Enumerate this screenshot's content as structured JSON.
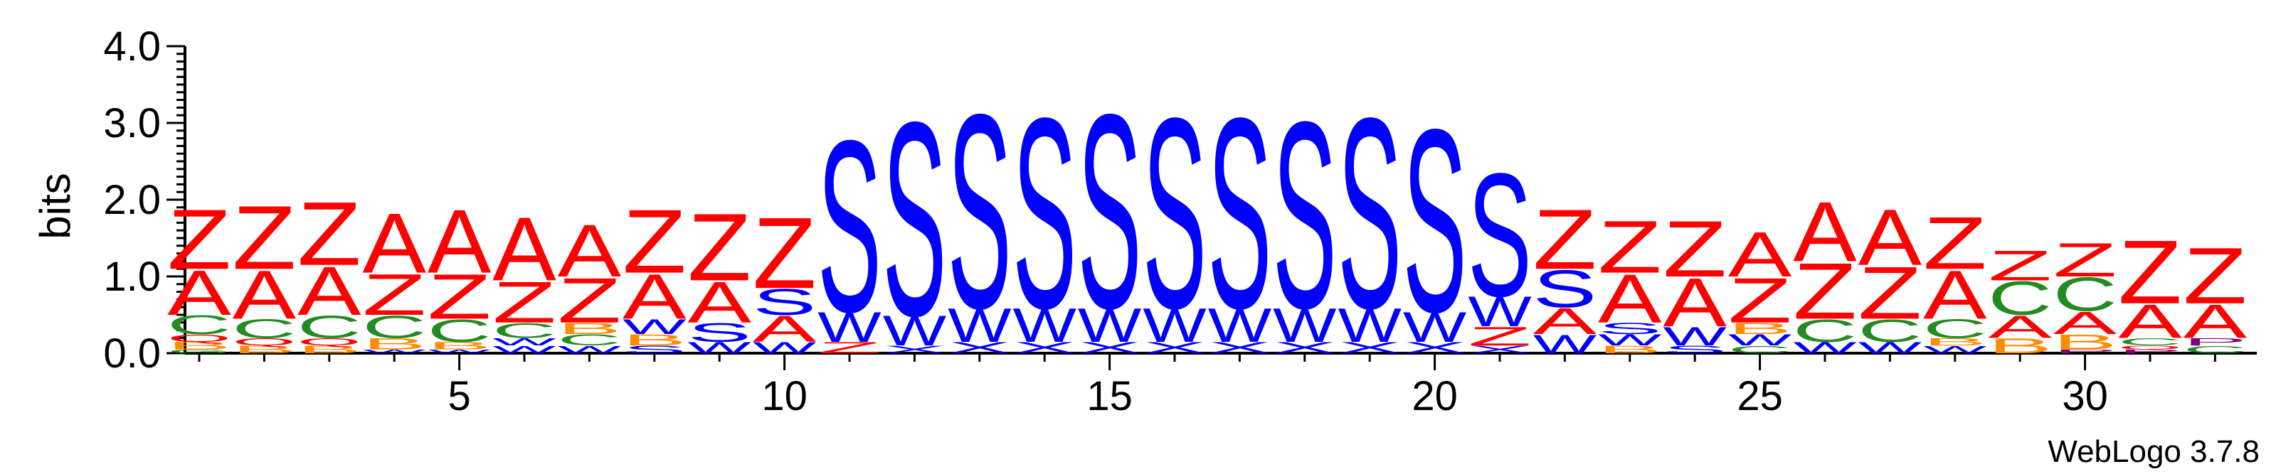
{
  "chart_data": {
    "type": "sequence-logo",
    "ylabel": "bits",
    "ylim": [
      0,
      4.0
    ],
    "y_ticks": [
      "0.0",
      "1.0",
      "2.0",
      "3.0",
      "4.0"
    ],
    "x_ticks": [
      5,
      10,
      15,
      20,
      25,
      30
    ],
    "x_range": [
      1,
      32
    ],
    "credit": "WebLogo 3.7.8",
    "colors": {
      "Z": "#ff0000",
      "A": "#ff0000",
      "S": "#0000ff",
      "W": "#0000ff",
      "X": "#0000ff",
      "C": "#228b22",
      "B": "#ff8c00",
      "P": "#800080",
      "Q": "#ff0000",
      "G": "#228b22",
      "O": "#ff0000"
    },
    "positions": [
      {
        "pos": 1,
        "stack": [
          [
            "G",
            0.05
          ],
          [
            "B",
            0.1
          ],
          [
            "Q",
            0.1
          ],
          [
            "C",
            0.25
          ],
          [
            "A",
            0.6
          ],
          [
            "Z",
            0.8
          ]
        ]
      },
      {
        "pos": 2,
        "stack": [
          [
            "B",
            0.1
          ],
          [
            "Q",
            0.1
          ],
          [
            "C",
            0.25
          ],
          [
            "A",
            0.65
          ],
          [
            "Z",
            0.85
          ]
        ]
      },
      {
        "pos": 3,
        "stack": [
          [
            "B",
            0.1
          ],
          [
            "Q",
            0.1
          ],
          [
            "C",
            0.3
          ],
          [
            "A",
            0.65
          ],
          [
            "Z",
            0.85
          ]
        ]
      },
      {
        "pos": 4,
        "stack": [
          [
            "W",
            0.05
          ],
          [
            "B",
            0.15
          ],
          [
            "C",
            0.3
          ],
          [
            "Z",
            0.55
          ],
          [
            "A",
            0.8
          ]
        ]
      },
      {
        "pos": 5,
        "stack": [
          [
            "W",
            0.05
          ],
          [
            "B",
            0.1
          ],
          [
            "C",
            0.3
          ],
          [
            "Z",
            0.6
          ],
          [
            "A",
            0.85
          ]
        ]
      },
      {
        "pos": 6,
        "stack": [
          [
            "W",
            0.1
          ],
          [
            "W",
            0.1
          ],
          [
            "C",
            0.2
          ],
          [
            "Z",
            0.55
          ],
          [
            "A",
            0.85
          ]
        ]
      },
      {
        "pos": 7,
        "stack": [
          [
            "W",
            0.1
          ],
          [
            "C",
            0.15
          ],
          [
            "B",
            0.15
          ],
          [
            "Z",
            0.6
          ],
          [
            "A",
            0.7
          ]
        ]
      },
      {
        "pos": 8,
        "stack": [
          [
            "S",
            0.1
          ],
          [
            "B",
            0.15
          ],
          [
            "W",
            0.2
          ],
          [
            "A",
            0.6
          ],
          [
            "Z",
            0.85
          ]
        ]
      },
      {
        "pos": 9,
        "stack": [
          [
            "W",
            0.15
          ],
          [
            "S",
            0.25
          ],
          [
            "A",
            0.55
          ],
          [
            "Z",
            0.9
          ]
        ]
      },
      {
        "pos": 10,
        "stack": [
          [
            "W",
            0.15
          ],
          [
            "A",
            0.35
          ],
          [
            "S",
            0.35
          ],
          [
            "Z",
            0.95
          ]
        ]
      },
      {
        "pos": 11,
        "stack": [
          [
            "Z",
            0.15
          ],
          [
            "W",
            0.4
          ],
          [
            "S",
            2.3
          ]
        ]
      },
      {
        "pos": 12,
        "stack": [
          [
            "X",
            0.1
          ],
          [
            "W",
            0.4
          ],
          [
            "S",
            2.6
          ]
        ]
      },
      {
        "pos": 13,
        "stack": [
          [
            "X",
            0.15
          ],
          [
            "W",
            0.45
          ],
          [
            "S",
            2.6
          ]
        ]
      },
      {
        "pos": 14,
        "stack": [
          [
            "X",
            0.15
          ],
          [
            "W",
            0.45
          ],
          [
            "S",
            2.55
          ]
        ]
      },
      {
        "pos": 15,
        "stack": [
          [
            "X",
            0.15
          ],
          [
            "W",
            0.45
          ],
          [
            "S",
            2.6
          ]
        ]
      },
      {
        "pos": 16,
        "stack": [
          [
            "X",
            0.15
          ],
          [
            "W",
            0.45
          ],
          [
            "S",
            2.55
          ]
        ]
      },
      {
        "pos": 17,
        "stack": [
          [
            "X",
            0.15
          ],
          [
            "W",
            0.45
          ],
          [
            "S",
            2.55
          ]
        ]
      },
      {
        "pos": 18,
        "stack": [
          [
            "X",
            0.15
          ],
          [
            "W",
            0.45
          ],
          [
            "S",
            2.5
          ]
        ]
      },
      {
        "pos": 19,
        "stack": [
          [
            "X",
            0.15
          ],
          [
            "W",
            0.45
          ],
          [
            "S",
            2.55
          ]
        ]
      },
      {
        "pos": 20,
        "stack": [
          [
            "X",
            0.15
          ],
          [
            "W",
            0.4
          ],
          [
            "S",
            2.45
          ]
        ]
      },
      {
        "pos": 21,
        "stack": [
          [
            "X",
            0.1
          ],
          [
            "Z",
            0.25
          ],
          [
            "W",
            0.4
          ],
          [
            "S",
            1.65
          ]
        ]
      },
      {
        "pos": 22,
        "stack": [
          [
            "W",
            0.25
          ],
          [
            "A",
            0.35
          ],
          [
            "S",
            0.5
          ],
          [
            "Z",
            0.8
          ]
        ]
      },
      {
        "pos": 23,
        "stack": [
          [
            "B",
            0.1
          ],
          [
            "W",
            0.15
          ],
          [
            "S",
            0.15
          ],
          [
            "A",
            0.65
          ],
          [
            "Z",
            0.7
          ]
        ]
      },
      {
        "pos": 24,
        "stack": [
          [
            "S",
            0.1
          ],
          [
            "W",
            0.25
          ],
          [
            "A",
            0.65
          ],
          [
            "Z",
            0.75
          ]
        ]
      },
      {
        "pos": 25,
        "stack": [
          [
            "C",
            0.1
          ],
          [
            "W",
            0.15
          ],
          [
            "B",
            0.15
          ],
          [
            "Z",
            0.6
          ],
          [
            "A",
            0.6
          ]
        ]
      },
      {
        "pos": 26,
        "stack": [
          [
            "W",
            0.15
          ],
          [
            "C",
            0.3
          ],
          [
            "Z",
            0.75
          ],
          [
            "A",
            0.8
          ]
        ]
      },
      {
        "pos": 27,
        "stack": [
          [
            "W",
            0.15
          ],
          [
            "C",
            0.3
          ],
          [
            "Z",
            0.7
          ],
          [
            "A",
            0.75
          ]
        ]
      },
      {
        "pos": 28,
        "stack": [
          [
            "W",
            0.1
          ],
          [
            "B",
            0.1
          ],
          [
            "C",
            0.25
          ],
          [
            "A",
            0.65
          ],
          [
            "Z",
            0.7
          ]
        ]
      },
      {
        "pos": 29,
        "stack": [
          [
            "B",
            0.2
          ],
          [
            "A",
            0.3
          ],
          [
            "C",
            0.45
          ],
          [
            "Z",
            0.4
          ]
        ]
      },
      {
        "pos": 30,
        "stack": [
          [
            "P",
            0.05
          ],
          [
            "B",
            0.2
          ],
          [
            "A",
            0.3
          ],
          [
            "C",
            0.45
          ],
          [
            "Z",
            0.45
          ]
        ]
      },
      {
        "pos": 31,
        "stack": [
          [
            "P",
            0.05
          ],
          [
            "Q",
            0.05
          ],
          [
            "C",
            0.1
          ],
          [
            "A",
            0.45
          ],
          [
            "Z",
            0.85
          ]
        ]
      },
      {
        "pos": 32,
        "stack": [
          [
            "C",
            0.1
          ],
          [
            "P",
            0.1
          ],
          [
            "A",
            0.45
          ],
          [
            "Z",
            0.75
          ]
        ]
      }
    ]
  }
}
